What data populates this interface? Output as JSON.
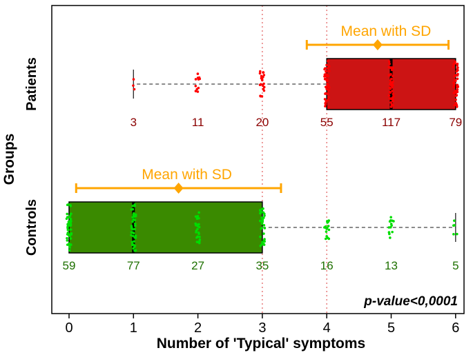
{
  "chart_data": {
    "type": "boxplot",
    "orientation": "horizontal",
    "title": "",
    "xlabel": "Number of 'Typical' symptoms",
    "ylabel": "Groups",
    "xticks": [
      0,
      1,
      2,
      3,
      4,
      5,
      6
    ],
    "xlim": [
      -0.35,
      6.35
    ],
    "annotation": "p-value<0,0001",
    "grid": false,
    "legend": "none",
    "reference_lines_x": [
      3,
      4
    ],
    "reference_line_color": "#e05a5a",
    "mean_color": "#ffa500",
    "whisker_color": "#444444",
    "groups": [
      {
        "label": "Patients",
        "box": {
          "lower_whisker": 1,
          "q1": 4,
          "median": 5,
          "q3": 6,
          "upper_whisker": 6
        },
        "mean": 4.79,
        "sd": 1.1,
        "mean_label": "Mean with SD",
        "points_x": [
          1,
          2,
          3,
          4,
          5,
          6
        ],
        "counts": [
          3,
          11,
          20,
          55,
          117,
          79
        ],
        "colors": {
          "box": "#cc1414",
          "points": "#ff0000",
          "counts": "#8b0000"
        }
      },
      {
        "label": "Controls",
        "box": {
          "lower_whisker": 0,
          "q1": 0,
          "median": 1,
          "q3": 3,
          "upper_whisker": 6
        },
        "mean": 1.7,
        "sd": 1.59,
        "mean_label": "Mean with SD",
        "points_x": [
          0,
          1,
          2,
          3,
          4,
          5,
          6
        ],
        "counts": [
          59,
          77,
          27,
          35,
          16,
          13,
          5
        ],
        "colors": {
          "box": "#3a8a00",
          "points": "#00dd00",
          "counts": "#1e7000"
        }
      }
    ]
  }
}
